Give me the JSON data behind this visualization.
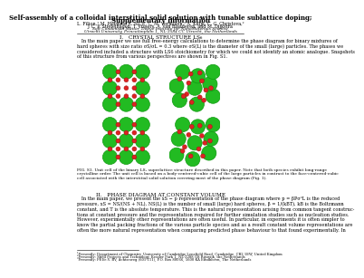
{
  "title_line1": "Self-assembly of a colloidal interstitial solid solution with tunable sublattice doping;",
  "title_line2": "Supplementary information",
  "authors_line1": "L. Filion,¹ M. Hermes, R. Ni, E. C. M. Vermolen,¹ A. Kuijk, C. G. Christova,²",
  "authors_line2": "J. C. P. Stiefelhagen, T. Vissers, A. van Blaaderen, and M. Dijkstra",
  "affil1": "Soft Condensed Matter, Debye Institute for NanoMaterials Science,",
  "affil2": "Utrecht University, Princetonplein 1, NL-3584 CC Utrecht, the Netherlands",
  "section1": "I.   CRYSTAL STRUCTURE LS₆",
  "body1_indent": "   In the main paper we use full free-energy calculations to determine the phase diagram for binary mixtures of\nhard spheres with size ratio σS/σL = 0.3 where σS(L) is the diameter of the small (large) particles. The phases we\nconsidered included a structure with LS6 stoichiometry for which we could not identify an atomic analogue. Snapshots\nof this structure from various perspectives are shown in Fig. S1.",
  "fig_caption": "FIG. S1. Unit cell of the binary LS₆ superlattice structure described in this paper. Note that both species exhibit long-range\ncrystalline order. The unit cell is based on a body-centered-cubic cell of the large particles in contrast to the face-centered-cubic\ncell associated with the interstitial solid solution covering most of the phase diagram (Fig. 1).",
  "section2": "II.   PHASE DIAGRAM AT CONSTANT VOLUME",
  "body2": "   In the main paper, we present the xS − p representation of the phase diagram where p = βPσ³L is the reduced\npressure, xS = NS/(NS + NL), NS(L) is the number of small (large) hard spheres, β = 1/(kBT), kB is the Boltzmann\nconstant, and T is the absolute temperature. This is the natural representation arising from common tangent construc-\ntions at constant pressure and the representation required for further simulation studies such as nucleation studies.\nHowever, experimentally other representations are often useful. In particular, in experiments it is often simpler to\nknow the partial packing fractions of the various particle species and as a result constant volume representations are\noften the more natural representation when comparing predicted phase behaviour to that found experimentally. In",
  "footnote1": "¹Presently: Department of Chemistry, University of Cambridge,Lensfield Road, Cambridge, CB2 1EW, United Kingdom",
  "footnote2": "²Presently: Shell Projects and Technology, Kessler Park 1, NL-2288 GS Rijswijk, the Netherlands",
  "footnote3": "³Presently: FEI/e.V. BV, Achtseweg (601-111), P.O. Box 80066, 5600 KA Eindhoven, The Netherlands",
  "bg_color": "#ffffff",
  "text_color": "#000000",
  "large_sphere_color": "#22bb22",
  "large_sphere_edge": "#119911",
  "small_sphere_color": "#dd2222",
  "small_sphere_edge": "#991111",
  "title_fontsize": 5.0,
  "author_fontsize": 3.5,
  "affil_fontsize": 3.2,
  "section_fontsize": 4.2,
  "body_fontsize": 3.6,
  "caption_fontsize": 3.2,
  "footnote_fontsize": 2.7
}
